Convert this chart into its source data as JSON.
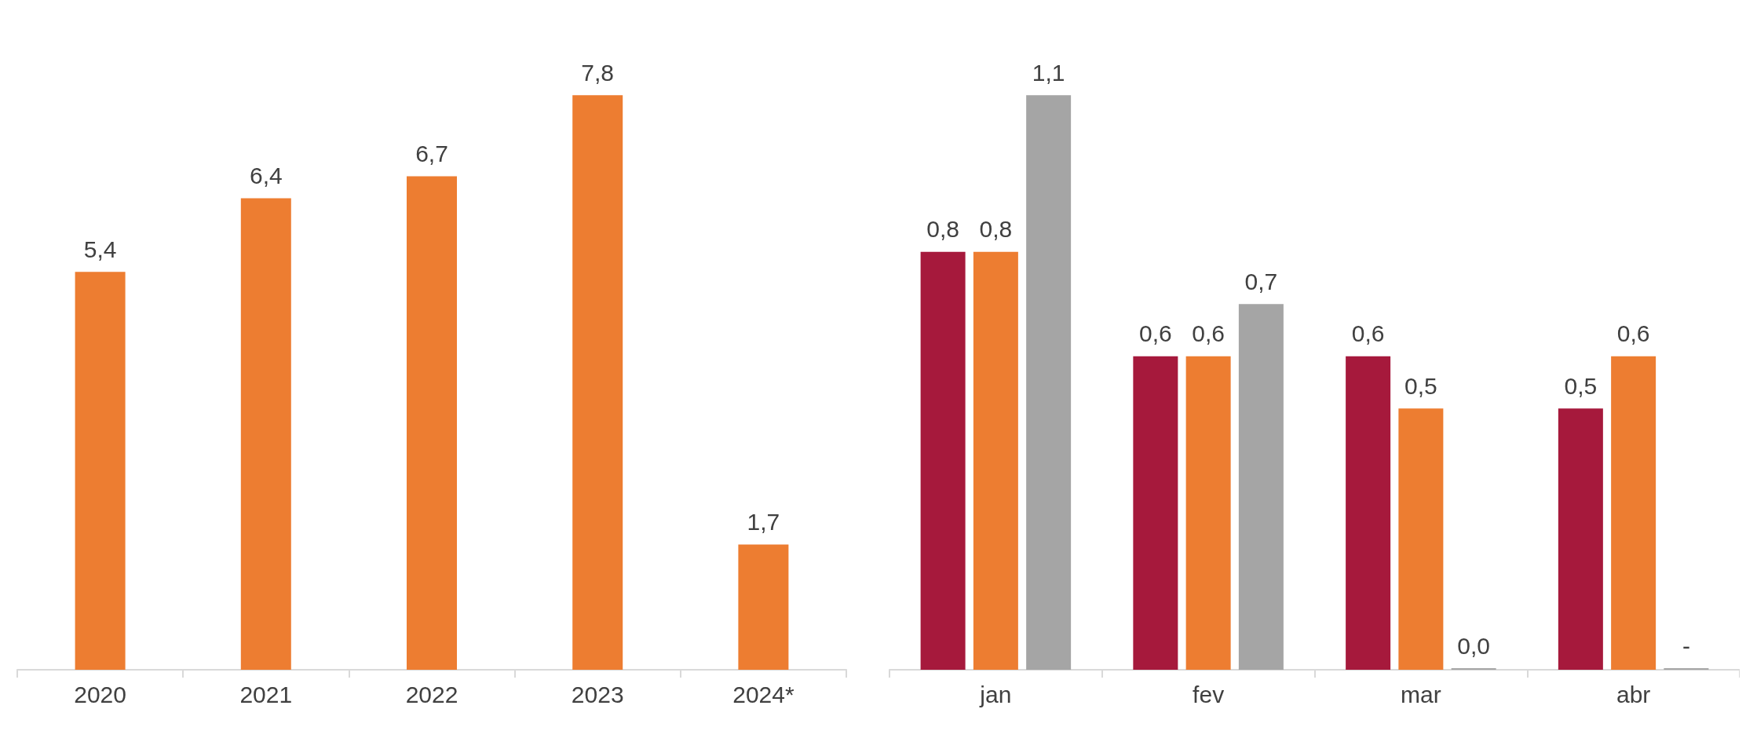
{
  "chart_data": [
    {
      "type": "bar",
      "categories": [
        "2020",
        "2021",
        "2022",
        "2023",
        "2024*"
      ],
      "values": [
        5.4,
        6.4,
        6.7,
        7.8,
        1.7
      ],
      "value_labels": [
        "5,4",
        "6,4",
        "6,7",
        "7,8",
        "1,7"
      ],
      "color": "#ed7d31"
    },
    {
      "type": "bar",
      "categories": [
        "jan",
        "fev",
        "mar",
        "abr"
      ],
      "series": [
        {
          "color": "#a6193c",
          "values": [
            0.8,
            0.6,
            0.6,
            0.5
          ],
          "value_labels": [
            "0,8",
            "0,6",
            "0,6",
            "0,5"
          ]
        },
        {
          "color": "#ed7d31",
          "values": [
            0.8,
            0.6,
            0.5,
            0.6
          ],
          "value_labels": [
            "0,8",
            "0,6",
            "0,5",
            "0,6"
          ]
        },
        {
          "color": "#a5a5a5",
          "values": [
            1.1,
            0.7,
            0,
            0
          ],
          "value_labels": [
            "1,1",
            "0,7",
            "0,0",
            "-"
          ]
        }
      ]
    }
  ]
}
